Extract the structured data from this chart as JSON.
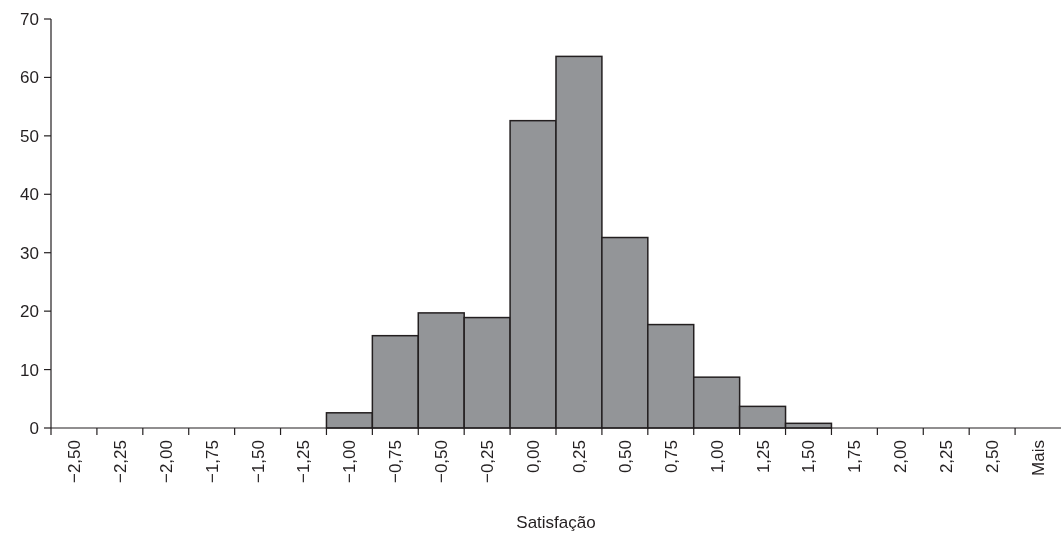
{
  "chart_data": {
    "type": "bar",
    "xlabel": "Satisfação",
    "categories": [
      "−2,50",
      "−2,25",
      "−2,00",
      "−1,75",
      "−1,50",
      "−1,25",
      "−1,00",
      "−0,75",
      "−0,50",
      "−0,25",
      "0,00",
      "0,25",
      "0,50",
      "0,75",
      "1,00",
      "1,25",
      "1,50",
      "1,75",
      "2,00",
      "2,25",
      "2,50",
      "Mais"
    ],
    "values": [
      0,
      0,
      0,
      0,
      0,
      0,
      2.6,
      15.8,
      19.7,
      18.9,
      52.6,
      63.6,
      32.6,
      17.7,
      8.7,
      3.7,
      0.8,
      0,
      0,
      0,
      0,
      0
    ],
    "color": "#939598",
    "ylim": [
      0,
      70
    ],
    "yticks": [
      0,
      10,
      20,
      30,
      40,
      50,
      60,
      70
    ],
    "grid": false
  }
}
